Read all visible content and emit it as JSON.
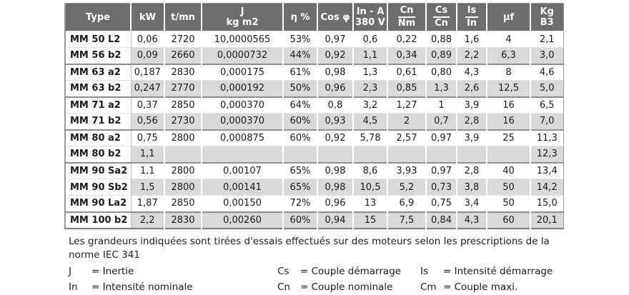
{
  "colors": {
    "header_bg": "#6d6d6d",
    "stripe": "#d9d9d9",
    "header_text": "#ffffff"
  },
  "table": {
    "columns": [
      {
        "id": "type",
        "style": "single",
        "label": "Type",
        "width": 92
      },
      {
        "id": "kw",
        "style": "single",
        "label": "kW",
        "width": 47
      },
      {
        "id": "tmn",
        "style": "single",
        "label": "t/mn",
        "width": 52
      },
      {
        "id": "inertia",
        "style": "twoline",
        "line1": "J",
        "line2": "kg m2",
        "width": 114
      },
      {
        "id": "eta",
        "style": "single",
        "label": "η %",
        "width": 48
      },
      {
        "id": "cosphi",
        "style": "single",
        "label": "Cos φ",
        "width": 50
      },
      {
        "id": "in-a-380v",
        "style": "twoline",
        "line1": "In - A",
        "line2": "380 V",
        "width": 48
      },
      {
        "id": "cn-nm",
        "style": "fraction",
        "line1": "Cn",
        "line2": "Nm",
        "width": 54
      },
      {
        "id": "cs-cn",
        "style": "fraction",
        "line1": "Cs",
        "line2": "Cn",
        "width": 43
      },
      {
        "id": "is-in",
        "style": "fraction",
        "line1": "Is",
        "line2": "In",
        "width": 42
      },
      {
        "id": "muf",
        "style": "single",
        "label": "μf",
        "width": 61
      },
      {
        "id": "kg-b3",
        "style": "twoline",
        "line1": "Kg",
        "line2": "B3",
        "width": 46
      }
    ],
    "rows": [
      {
        "type": "MM 50 L2",
        "group_start": false,
        "values": [
          "0,06",
          "2720",
          "10,0000565",
          "53%",
          "0,97",
          "0,6",
          "0,22",
          "0,88",
          "1,6",
          "4",
          "2,1"
        ]
      },
      {
        "type": "MM 56 b2",
        "group_start": false,
        "values": [
          "0,09",
          "2660",
          "0,0000732",
          "44%",
          "0,92",
          "1,1",
          "0,34",
          "0,89",
          "2,2",
          "6,3",
          "3,0"
        ]
      },
      {
        "type": "MM 63 a2",
        "group_start": true,
        "values": [
          "0,187",
          "2830",
          "0,000175",
          "61%",
          "0,98",
          "1,3",
          "0,61",
          "0,80",
          "4,3",
          "8",
          "4,6"
        ]
      },
      {
        "type": "MM 63 b2",
        "group_start": false,
        "values": [
          "0,247",
          "2770",
          "0,000192",
          "50%",
          "0,96",
          "2,3",
          "0,85",
          "1,3",
          "2,6",
          "12,5",
          "5,0"
        ]
      },
      {
        "type": "MM 71 a2",
        "group_start": true,
        "values": [
          "0,37",
          "2850",
          "0,000370",
          "64%",
          "0,8",
          "3,2",
          "1,27",
          "1",
          "3,9",
          "16",
          "6,5"
        ]
      },
      {
        "type": "MM 71 b2",
        "group_start": false,
        "values": [
          "0,56",
          "2730",
          "0,000370",
          "60%",
          "0,93",
          "4,5",
          "2",
          "0,7",
          "2,8",
          "16",
          "7,0"
        ]
      },
      {
        "type": "MM 80 a2",
        "group_start": true,
        "values": [
          "0,75",
          "2800",
          "0,000875",
          "60%",
          "0,92",
          "5,78",
          "2,57",
          "0,97",
          "3,9",
          "25",
          "11,3"
        ]
      },
      {
        "type": "MM 80 b2",
        "group_start": false,
        "values": [
          "1,1",
          "",
          "",
          "",
          "",
          "",
          "",
          "",
          "",
          "",
          "12,3"
        ]
      },
      {
        "type": "MM 90 Sa2",
        "group_start": true,
        "values": [
          "1,1",
          "2800",
          "0,00107",
          "65%",
          "0,98",
          "8,6",
          "3,93",
          "0,97",
          "2,8",
          "40",
          "13,4"
        ]
      },
      {
        "type": "MM 90 Sb2",
        "group_start": false,
        "values": [
          "1,5",
          "2800",
          "0,00141",
          "65%",
          "0,98",
          "10,5",
          "5,2",
          "0,73",
          "3,8",
          "50",
          "14,2"
        ]
      },
      {
        "type": "MM 90 La2",
        "group_start": false,
        "values": [
          "1,87",
          "2850",
          "0,00150",
          "72%",
          "0,96",
          "13",
          "6,9",
          "0,75",
          "3,4",
          "50",
          "15,0"
        ]
      },
      {
        "type": "MM 100 b2",
        "group_start": true,
        "values": [
          "2,2",
          "2830",
          "0,00260",
          "60%",
          "0,94",
          "15",
          "7,5",
          "0,84",
          "4,3",
          "60",
          "20,1"
        ]
      }
    ]
  },
  "note_lines": [
    "Les grandeurs indiquées sont tirées d'essais effectués sur des moteurs selon les prescriptions de la",
    "norme IEC 341"
  ],
  "legend": {
    "columns": [
      [
        {
          "abbr": "J",
          "definition": "= Inertie"
        },
        {
          "abbr": "In",
          "definition": "= Intensité nominale"
        }
      ],
      [
        {
          "abbr": "Cs",
          "definition": "= Couple démarrage"
        },
        {
          "abbr": "Cn",
          "definition": "= Couple nominale"
        }
      ],
      [
        {
          "abbr": "Is",
          "definition": "= Intensité démarrage"
        },
        {
          "abbr": "Cm",
          "definition": "= Couple maxi."
        }
      ]
    ]
  }
}
